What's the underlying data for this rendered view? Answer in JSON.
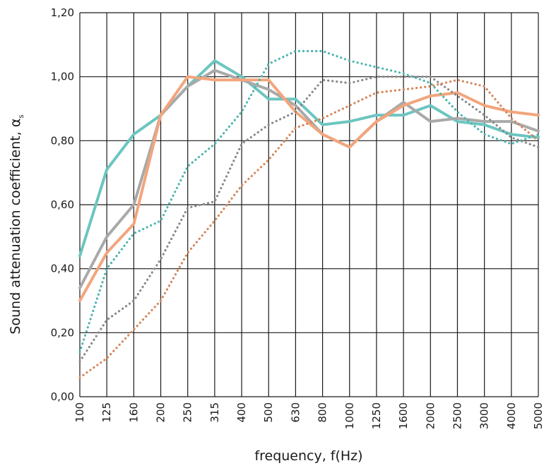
{
  "chart_data": {
    "type": "line",
    "title": "",
    "xlabel": "frequency, f(Hz)",
    "ylabel": "Sound attenuation coefficient, α",
    "ylabel_subscript": "s",
    "categories": [
      "100",
      "125",
      "160",
      "200",
      "250",
      "315",
      "400",
      "500",
      "630",
      "800",
      "1000",
      "1250",
      "1600",
      "2000",
      "2500",
      "3000",
      "4000",
      "5000"
    ],
    "y_ticks": [
      "0,00",
      "0,20",
      "0,40",
      "0,60",
      "0,80",
      "1,00",
      "1,20"
    ],
    "ylim": [
      0,
      1.2
    ],
    "grid": true,
    "legend": "none",
    "series": [
      {
        "color": "#6cc5c0",
        "style": "solid",
        "values": [
          0.44,
          0.71,
          0.82,
          0.88,
          0.97,
          1.05,
          1.0,
          0.93,
          0.93,
          0.85,
          0.86,
          0.88,
          0.88,
          0.91,
          0.86,
          0.85,
          0.82,
          0.81
        ]
      },
      {
        "color": "#a9a9a9",
        "style": "solid",
        "values": [
          0.34,
          0.5,
          0.6,
          0.88,
          0.97,
          1.02,
          0.99,
          0.96,
          0.91,
          0.82,
          0.78,
          0.86,
          0.92,
          0.86,
          0.87,
          0.86,
          0.86,
          0.83
        ]
      },
      {
        "color": "#f2a57c",
        "style": "solid",
        "values": [
          0.3,
          0.45,
          0.54,
          0.88,
          1.0,
          0.99,
          0.99,
          0.99,
          0.89,
          0.82,
          0.78,
          0.86,
          0.91,
          0.94,
          0.95,
          0.91,
          0.89,
          0.88
        ]
      },
      {
        "color": "#4fb5ae",
        "style": "dotted",
        "values": [
          0.14,
          0.4,
          0.51,
          0.55,
          0.72,
          0.79,
          0.89,
          1.04,
          1.08,
          1.08,
          1.05,
          1.03,
          1.01,
          0.98,
          0.89,
          0.82,
          0.79,
          0.82
        ]
      },
      {
        "color": "#888888",
        "style": "dotted",
        "values": [
          0.11,
          0.24,
          0.3,
          0.43,
          0.59,
          0.61,
          0.79,
          0.85,
          0.89,
          0.99,
          0.98,
          1.0,
          1.0,
          1.0,
          0.94,
          0.88,
          0.81,
          0.78
        ]
      },
      {
        "color": "#d4875a",
        "style": "dotted",
        "values": [
          0.06,
          0.12,
          0.21,
          0.3,
          0.45,
          0.55,
          0.66,
          0.74,
          0.84,
          0.87,
          0.91,
          0.95,
          0.96,
          0.97,
          0.99,
          0.97,
          0.87,
          0.8
        ]
      }
    ]
  }
}
